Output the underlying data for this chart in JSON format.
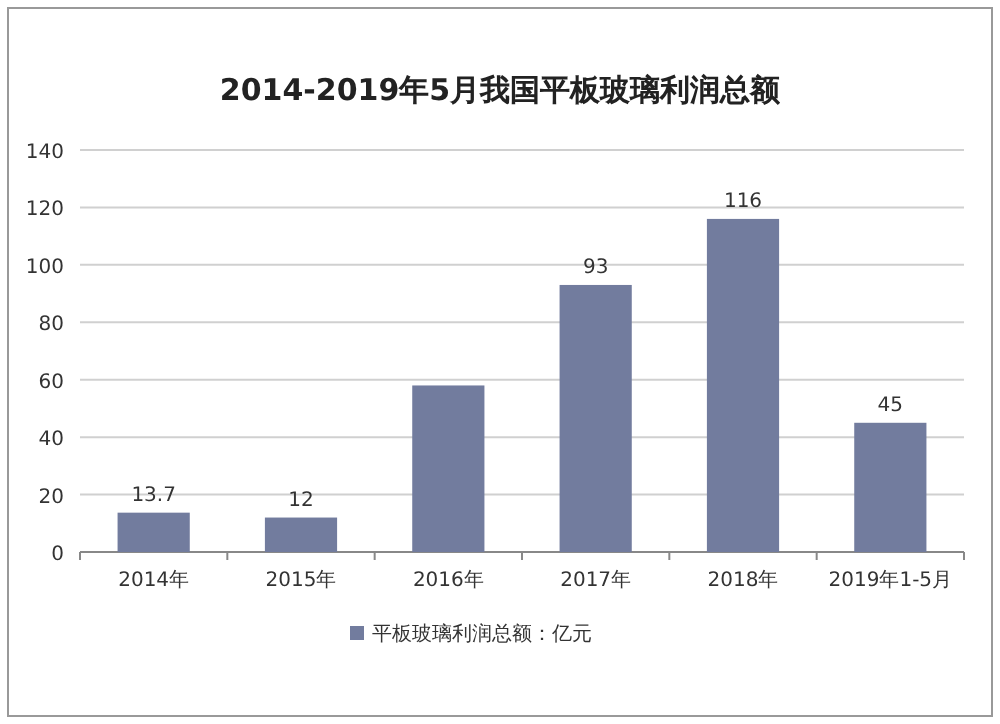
{
  "chart_data": {
    "type": "bar",
    "title": "2014-2019年5月我国平板玻璃利润总额",
    "categories": [
      "2014年",
      "2015年",
      "2016年",
      "2017年",
      "2018年",
      "2019年1-5月"
    ],
    "series": [
      {
        "name": "平板玻璃利润总额：亿元",
        "color": "#727c9e",
        "values": [
          13.7,
          12,
          58,
          93,
          116,
          45
        ],
        "value_labels": [
          "13.7",
          "12",
          null,
          "93",
          "116",
          "45"
        ]
      }
    ],
    "ylim": [
      0,
      140
    ],
    "yticks": [
      0,
      20,
      40,
      60,
      80,
      100,
      120,
      140
    ],
    "grid": "y",
    "legend": "bottom"
  }
}
